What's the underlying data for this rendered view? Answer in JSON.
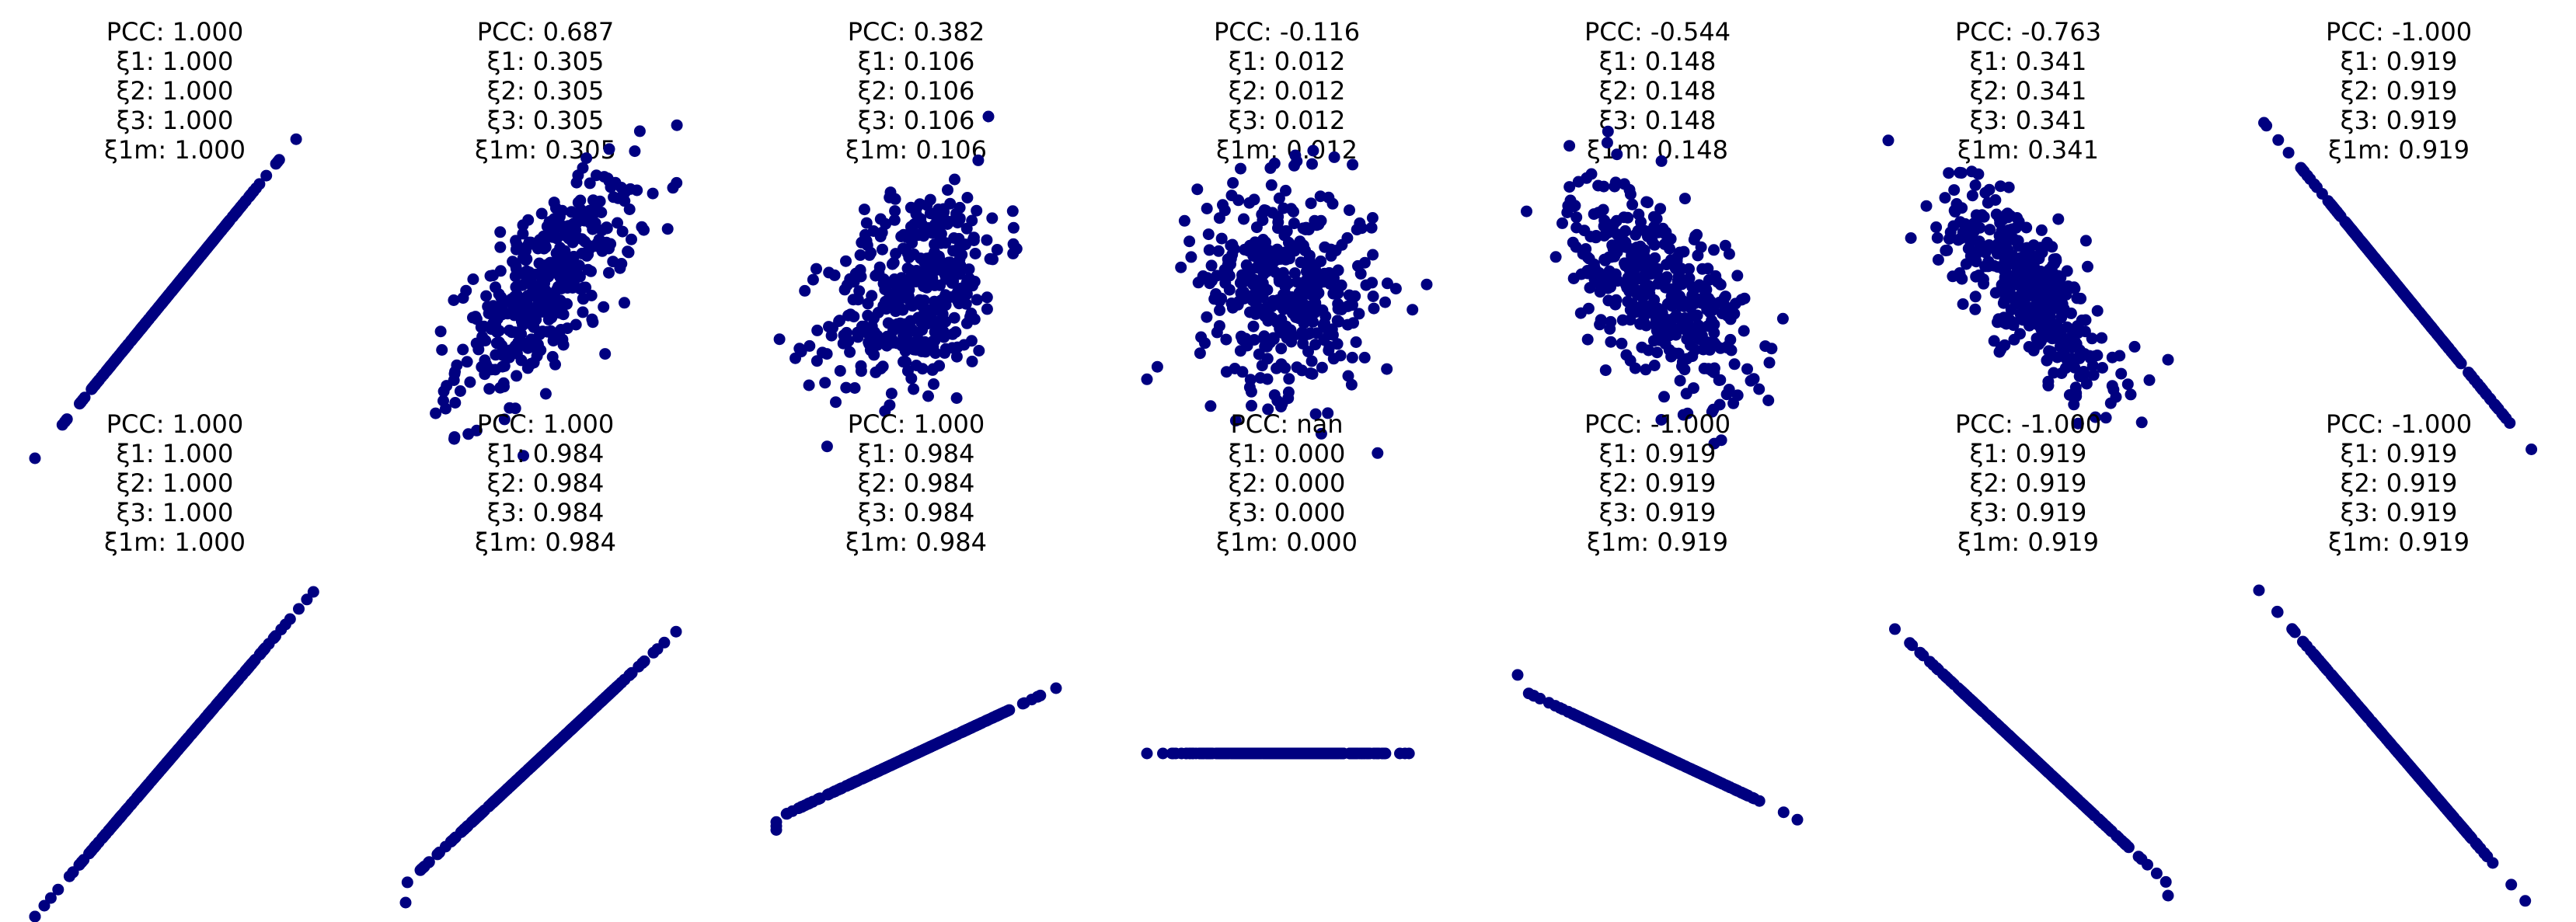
{
  "figure": {
    "point_color": "#000080",
    "background": "#ffffff",
    "axes_visible": false
  },
  "chart_data": [
    {
      "type": "scatter",
      "row": 0,
      "col": 0,
      "generator": "correlated_gaussian",
      "correlation": 1.0,
      "n": 400,
      "title_lines": [
        "PCC: 1.000",
        "ξ1: 1.000",
        "ξ2: 1.000",
        "ξ3: 1.000",
        "ξ1m: 1.000"
      ]
    },
    {
      "type": "scatter",
      "row": 0,
      "col": 1,
      "generator": "correlated_gaussian",
      "correlation": 0.687,
      "n": 400,
      "title_lines": [
        "PCC: 0.687",
        "ξ1: 0.305",
        "ξ2: 0.305",
        "ξ3: 0.305",
        "ξ1m: 0.305"
      ]
    },
    {
      "type": "scatter",
      "row": 0,
      "col": 2,
      "generator": "correlated_gaussian",
      "correlation": 0.382,
      "n": 400,
      "title_lines": [
        "PCC: 0.382",
        "ξ1: 0.106",
        "ξ2: 0.106",
        "ξ3: 0.106",
        "ξ1m: 0.106"
      ]
    },
    {
      "type": "scatter",
      "row": 0,
      "col": 3,
      "generator": "correlated_gaussian",
      "correlation": -0.116,
      "n": 400,
      "title_lines": [
        "PCC: -0.116",
        "ξ1: 0.012",
        "ξ2: 0.012",
        "ξ3: 0.012",
        "ξ1m: 0.012"
      ]
    },
    {
      "type": "scatter",
      "row": 0,
      "col": 4,
      "generator": "correlated_gaussian",
      "correlation": -0.544,
      "n": 400,
      "title_lines": [
        "PCC: -0.544",
        "ξ1: 0.148",
        "ξ2: 0.148",
        "ξ3: 0.148",
        "ξ1m: 0.148"
      ]
    },
    {
      "type": "scatter",
      "row": 0,
      "col": 5,
      "generator": "correlated_gaussian",
      "correlation": -0.763,
      "n": 400,
      "title_lines": [
        "PCC: -0.763",
        "ξ1: 0.341",
        "ξ2: 0.341",
        "ξ3: 0.341",
        "ξ1m: 0.341"
      ]
    },
    {
      "type": "scatter",
      "row": 0,
      "col": 6,
      "generator": "correlated_gaussian",
      "correlation": -1.0,
      "n": 400,
      "title_lines": [
        "PCC: -1.000",
        "ξ1: 0.919",
        "ξ2: 0.919",
        "ξ3: 0.919",
        "ξ1m: 0.919"
      ]
    },
    {
      "type": "scatter",
      "row": 1,
      "col": 0,
      "generator": "linear",
      "slope": 1.0,
      "n": 400,
      "title_lines": [
        "PCC: 1.000",
        "ξ1: 1.000",
        "ξ2: 1.000",
        "ξ3: 1.000",
        "ξ1m: 1.000"
      ]
    },
    {
      "type": "scatter",
      "row": 1,
      "col": 1,
      "generator": "linear",
      "slope": 0.8,
      "n": 400,
      "title_lines": [
        "PCC: 1.000",
        "ξ1: 0.984",
        "ξ2: 0.984",
        "ξ3: 0.984",
        "ξ1m: 0.984"
      ]
    },
    {
      "type": "scatter",
      "row": 1,
      "col": 2,
      "generator": "linear",
      "slope": 0.4,
      "n": 400,
      "title_lines": [
        "PCC: 1.000",
        "ξ1: 0.984",
        "ξ2: 0.984",
        "ξ3: 0.984",
        "ξ1m: 0.984"
      ]
    },
    {
      "type": "scatter",
      "row": 1,
      "col": 3,
      "generator": "linear",
      "slope": 0.0,
      "n": 400,
      "title_lines": [
        "PCC: nan",
        "ξ1: 0.000",
        "ξ2: 0.000",
        "ξ3: 0.000",
        "ξ1m: 0.000"
      ]
    },
    {
      "type": "scatter",
      "row": 1,
      "col": 4,
      "generator": "linear",
      "slope": -0.4,
      "n": 400,
      "title_lines": [
        "PCC: -1.000",
        "ξ1: 0.919",
        "ξ2: 0.919",
        "ξ3: 0.919",
        "ξ1m: 0.919"
      ]
    },
    {
      "type": "scatter",
      "row": 1,
      "col": 5,
      "generator": "linear",
      "slope": -0.8,
      "n": 400,
      "title_lines": [
        "PCC: -1.000",
        "ξ1: 0.919",
        "ξ2: 0.919",
        "ξ3: 0.919",
        "ξ1m: 0.919"
      ]
    },
    {
      "type": "scatter",
      "row": 1,
      "col": 6,
      "generator": "linear",
      "slope": -1.0,
      "n": 400,
      "title_lines": [
        "PCC: -1.000",
        "ξ1: 0.919",
        "ξ2: 0.919",
        "ξ3: 0.919",
        "ξ1m: 0.919"
      ]
    }
  ]
}
